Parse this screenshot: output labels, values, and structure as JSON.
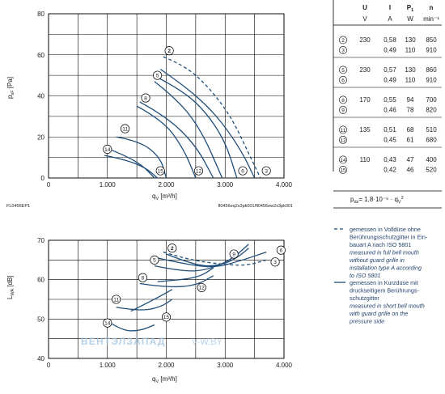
{
  "colors": {
    "curve": "#1f4e79",
    "grid": "#000000",
    "watermark": "#9fc3e0"
  },
  "top_chart": {
    "ylabel_main": "p",
    "ylabel_sub": "sF",
    "ylabel_unit": "[Pa]",
    "xlabel_main": "q",
    "xlabel_sub": "V",
    "xlabel_unit": "[m³/h]",
    "code_left": "FL0456EP1",
    "code_right": "fl0456eq2s3pk001/fl0456ew2s3pk001"
  },
  "bottom_chart": {
    "ylabel_main": "L",
    "ylabel_sub": "WA",
    "ylabel_unit": "[dB]",
    "xlabel_main": "q",
    "xlabel_sub": "V",
    "xlabel_unit": "[m³/h]"
  },
  "watermark": {
    "left": "ВЕНТЭЛЗАПАД",
    "right": "V-W.BY"
  },
  "chart_data": [
    {
      "type": "line",
      "x_ticks": [
        "0",
        "1.000",
        "2.000",
        "3.000",
        "4.000"
      ],
      "y_ticks": [
        "0",
        "20",
        "40",
        "60",
        "80"
      ],
      "xlim": [
        0,
        4000
      ],
      "ylim": [
        0,
        80
      ],
      "grid": true,
      "series": [
        {
          "marker": "2",
          "dashed": true,
          "x": [
            1950,
            2300,
            2700,
            3100,
            3400,
            3600
          ],
          "y": [
            59,
            55,
            45,
            30,
            12,
            0
          ]
        },
        {
          "marker": "3",
          "dashed": false,
          "x": [
            1900,
            2300,
            2700,
            3000,
            3300,
            3500
          ],
          "y": [
            53,
            45,
            35,
            25,
            12,
            0
          ]
        },
        {
          "marker": "5",
          "dashed": false,
          "x": [
            1850,
            2250,
            2650,
            3000,
            3200
          ],
          "y": [
            49,
            43,
            33,
            18,
            0
          ]
        },
        {
          "marker": "6",
          "dashed": false,
          "x": [
            1800,
            2200,
            2600,
            2950
          ],
          "y": [
            47,
            38,
            23,
            0
          ]
        },
        {
          "marker": "8",
          "dashed": false,
          "x": [
            1550,
            2000,
            2500,
            2800
          ],
          "y": [
            37,
            30,
            16,
            0
          ]
        },
        {
          "marker": "12",
          "dashed": false,
          "x": [
            1500,
            1950,
            2300,
            2500
          ],
          "y": [
            35,
            28,
            14,
            0
          ]
        },
        {
          "marker": "11",
          "dashed": false,
          "x": [
            1150,
            1550,
            1900,
            2000
          ],
          "y": [
            20,
            18,
            10,
            0
          ]
        },
        {
          "marker": "15",
          "dashed": false,
          "x": [
            950,
            1300,
            1650,
            1850
          ],
          "y": [
            11,
            9,
            5,
            0
          ]
        },
        {
          "marker": "14",
          "dashed": false,
          "x": [
            950,
            1300,
            1600,
            1800
          ],
          "y": [
            15,
            11,
            6,
            0
          ]
        }
      ],
      "label_positions": [
        {
          "marker": "2",
          "x": 2050,
          "y": 62
        },
        {
          "marker": "5",
          "x": 1850,
          "y": 50
        },
        {
          "marker": "8",
          "x": 1650,
          "y": 39
        },
        {
          "marker": "11",
          "x": 1300,
          "y": 24
        },
        {
          "marker": "14",
          "x": 1000,
          "y": 14
        },
        {
          "marker": "15",
          "x": 1900,
          "y": 3.5
        },
        {
          "marker": "12",
          "x": 2550,
          "y": 3.5
        },
        {
          "marker": "6",
          "x": 3300,
          "y": 3.5
        },
        {
          "marker": "3",
          "x": 3700,
          "y": 3.5
        }
      ]
    },
    {
      "type": "line",
      "x_ticks": [
        "0",
        "1.000",
        "2.000",
        "3.000",
        "4.000"
      ],
      "y_ticks": [
        "40",
        "50",
        "60",
        "70"
      ],
      "xlim": [
        0,
        4000
      ],
      "ylim": [
        40,
        70
      ],
      "grid": true,
      "series": [
        {
          "marker": "2",
          "dashed": true,
          "x": [
            1950,
            2400,
            2900,
            3350,
            3700
          ],
          "y": [
            67,
            65,
            64,
            63.5,
            65
          ]
        },
        {
          "marker": "3",
          "dashed": false,
          "x": [
            1850,
            2300,
            2800,
            3200,
            3700
          ],
          "y": [
            65.5,
            64,
            63,
            64.5,
            67
          ]
        },
        {
          "marker": "5",
          "dashed": false,
          "x": [
            1800,
            2300,
            2700,
            3100,
            3400
          ],
          "y": [
            63.5,
            62,
            62.5,
            65,
            69
          ]
        },
        {
          "marker": "6",
          "dashed": false,
          "x": [
            2000,
            2500,
            2900,
            3200,
            3400
          ],
          "y": [
            66.5,
            63.5,
            63.5,
            65.5,
            68
          ]
        },
        {
          "marker": "8",
          "dashed": false,
          "x": [
            1550,
            2000,
            2500,
            2800
          ],
          "y": [
            59,
            58,
            58.5,
            61
          ]
        },
        {
          "marker": "12",
          "dashed": false,
          "x": [
            1850,
            2300,
            2600,
            2800
          ],
          "y": [
            59.5,
            60,
            61,
            63
          ]
        },
        {
          "marker": "11",
          "dashed": false,
          "x": [
            1150,
            1550,
            1900,
            2100
          ],
          "y": [
            53,
            52,
            53,
            55
          ]
        },
        {
          "marker": "15",
          "dashed": false,
          "x": [
            1400,
            1800,
            2100
          ],
          "y": [
            52,
            55,
            57.5
          ]
        },
        {
          "marker": "14",
          "dashed": false,
          "x": [
            1000,
            1250,
            1550,
            1800
          ],
          "y": [
            49.5,
            47,
            47,
            48.5
          ]
        }
      ],
      "label_positions": [
        {
          "marker": "2",
          "x": 2100,
          "y": 68
        },
        {
          "marker": "5",
          "x": 1800,
          "y": 65
        },
        {
          "marker": "9",
          "x": 3150,
          "y": 66.5
        },
        {
          "marker": "6",
          "x": 3950,
          "y": 67.5
        },
        {
          "marker": "3",
          "x": 3850,
          "y": 64.5
        },
        {
          "marker": "8",
          "x": 1600,
          "y": 60.5
        },
        {
          "marker": "12",
          "x": 2600,
          "y": 58
        },
        {
          "marker": "11",
          "x": 1150,
          "y": 55
        },
        {
          "marker": "15",
          "x": 2000,
          "y": 50.5
        },
        {
          "marker": "14",
          "x": 1000,
          "y": 49
        }
      ]
    }
  ],
  "table": {
    "headers": [
      "U",
      "I",
      "P",
      "n"
    ],
    "header_sub": [
      "",
      "",
      "1",
      ""
    ],
    "units": [
      "V",
      "A",
      "W",
      "min⁻¹"
    ],
    "groups": [
      {
        "rows": [
          [
            "2",
            "230",
            "0,58",
            "130",
            "850"
          ],
          [
            "3",
            "",
            "0,49",
            "110",
            "910"
          ]
        ]
      },
      {
        "rows": [
          [
            "5",
            "230",
            "0,57",
            "130",
            "860"
          ],
          [
            "6",
            "",
            "0,49",
            "110",
            "910"
          ]
        ]
      },
      {
        "rows": [
          [
            "8",
            "170",
            "0,55",
            "94",
            "700"
          ],
          [
            "9",
            "",
            "0,46",
            "78",
            "820"
          ]
        ]
      },
      {
        "rows": [
          [
            "11",
            "135",
            "0,51",
            "68",
            "510"
          ],
          [
            "12",
            "",
            "0,45",
            "61",
            "680"
          ]
        ]
      },
      {
        "rows": [
          [
            "14",
            "110",
            "0,43",
            "47",
            "400"
          ],
          [
            "15",
            "",
            "0,42",
            "46",
            "520"
          ]
        ]
      }
    ],
    "formula_left": "p",
    "formula_sub": "dz",
    "formula_right": "= 1,8·10⁻⁶ · q",
    "formula_sub2": "V",
    "formula_sup": "2"
  },
  "legend": [
    {
      "style": "dashed",
      "lines": [
        {
          "text": "gemessen in Volldüse ohne",
          "italic": false
        },
        {
          "text": "Berührungsschutzgitter in Ein-",
          "italic": false
        },
        {
          "text": "bauart A nach ISO 5801",
          "italic": false
        },
        {
          "text": "measured in full bell mouth",
          "italic": true
        },
        {
          "text": "without guard grille in",
          "italic": true
        },
        {
          "text": "installation type A according",
          "italic": true
        },
        {
          "text": "to ISO 5801",
          "italic": true
        }
      ]
    },
    {
      "style": "solid",
      "lines": [
        {
          "text": "gemessen in Kurzdüse mit",
          "italic": false
        },
        {
          "text": "druckseitigem Berührungs-",
          "italic": false
        },
        {
          "text": "schutzgitter",
          "italic": false
        },
        {
          "text": "measured in short bell mouth",
          "italic": true
        },
        {
          "text": "with guard grille on the",
          "italic": true
        },
        {
          "text": "pressure side",
          "italic": true
        }
      ]
    }
  ]
}
